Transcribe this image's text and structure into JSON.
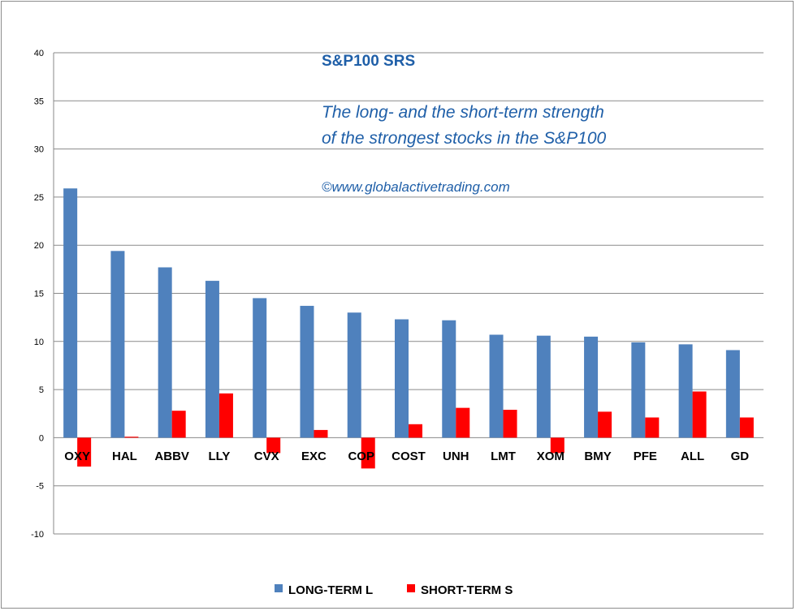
{
  "chart_data": {
    "type": "bar",
    "title": "S&P100 SRS",
    "subtitle_lines": [
      "The long- and the short-term strength",
      "of the  strongest stocks in the S&P100"
    ],
    "credit": "©www.globalactivetrading.com",
    "categories": [
      "OXY",
      "HAL",
      "ABBV",
      "LLY",
      "CVX",
      "EXC",
      "COP",
      "COST",
      "UNH",
      "LMT",
      "XOM",
      "BMY",
      "PFE",
      "ALL",
      "GD"
    ],
    "series": [
      {
        "name": "LONG-TERM  L",
        "color": "#4f81bd",
        "values": [
          25.9,
          19.4,
          17.7,
          16.3,
          14.5,
          13.7,
          13.0,
          12.3,
          12.2,
          10.7,
          10.6,
          10.5,
          9.9,
          9.7,
          9.1
        ]
      },
      {
        "name": "SHORT-TERM  S",
        "color": "#ff0000",
        "values": [
          -3.0,
          0.1,
          2.8,
          4.6,
          -1.6,
          0.8,
          -3.2,
          1.4,
          3.1,
          2.9,
          -1.6,
          2.7,
          2.1,
          4.8,
          2.1
        ]
      }
    ],
    "yticks": [
      "40",
      "35",
      "30",
      "25",
      "20",
      "15",
      "10",
      "5",
      "0",
      "-5",
      "-10"
    ],
    "ylim": [
      -10,
      40
    ],
    "grid": true,
    "legend_position": "bottom"
  }
}
